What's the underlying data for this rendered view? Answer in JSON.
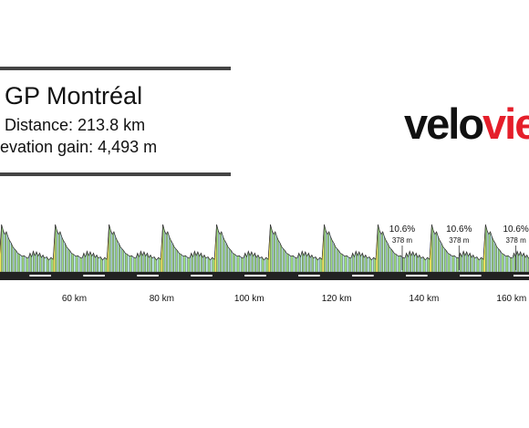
{
  "header": {
    "title": "GP Montréal",
    "distance": "Distance: 213.8 km",
    "elevation_gain": "evation gain: 4,493 m"
  },
  "logo": {
    "part1": "velo",
    "part2": "vie"
  },
  "colors": {
    "accent": "#e51e2a",
    "road": "#222222",
    "climb_yellow": "#f2ea5c",
    "climb_cyan": "#bfe9ee",
    "climb_green": "#9de07f"
  },
  "chart_data": {
    "type": "area",
    "title": "GP Montréal",
    "xlabel": "",
    "ylabel": "",
    "x_ticks": [
      "60 km",
      "80 km",
      "100 km",
      "120 km",
      "140 km",
      "160 km"
    ],
    "x_tick_values": [
      60,
      80,
      100,
      120,
      140,
      160
    ],
    "xlim": [
      43,
      164
    ],
    "lap_length_km": 12.3,
    "first_lap_start_km": 49.5,
    "peak_elevation_m": 378,
    "annotations": [
      {
        "km": 135,
        "gradient": "10.6%",
        "elevation": "378 m"
      },
      {
        "km": 148,
        "gradient": "10.6%",
        "elevation": "378 m"
      },
      {
        "km": 161,
        "gradient": "10.6%",
        "elevation": "378 m"
      }
    ]
  }
}
